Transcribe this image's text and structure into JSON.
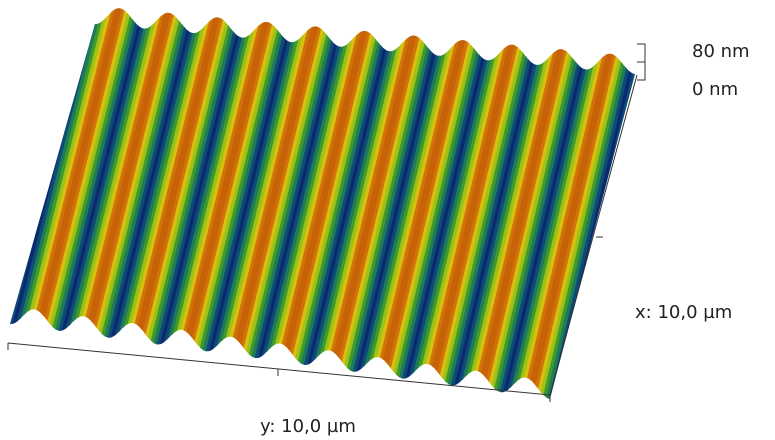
{
  "scale": {
    "top_label": "80 nm",
    "bottom_label": "0 nm"
  },
  "axes": {
    "x_label": "x: 10,0 µm",
    "y_label": "y: 10,0 µm"
  }
}
